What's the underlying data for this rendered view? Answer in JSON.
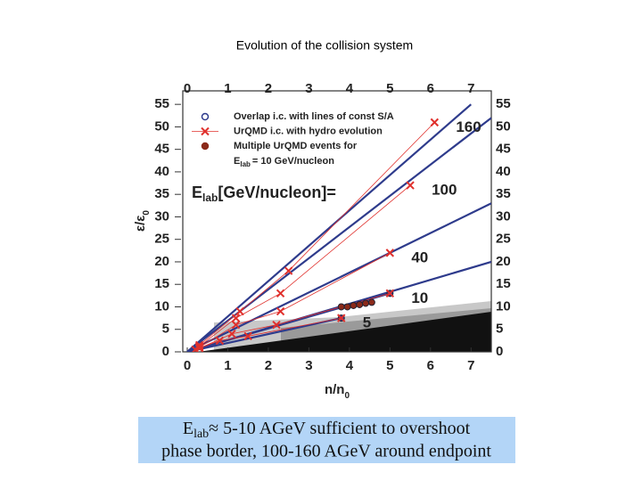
{
  "chart_data": {
    "type": "line",
    "title": "Evolution of the collision system",
    "xlabel": {
      "main": "n/n",
      "sub": "0"
    },
    "ylabel": {
      "main": "ε/ε",
      "sub": "0"
    },
    "annotation": {
      "main": "E",
      "sub": "lab",
      "rest": "[GeV/nucleon]="
    },
    "xlim": [
      0,
      7.5
    ],
    "ylim": [
      0,
      58
    ],
    "xticks": [
      0,
      1,
      2,
      3,
      4,
      5,
      6,
      7
    ],
    "yticks": [
      0,
      5,
      10,
      15,
      20,
      25,
      30,
      35,
      40,
      45,
      50,
      55
    ],
    "series": [
      {
        "name": "Overlap i.c. with lines of const S/A",
        "color": "#2e3b8c",
        "marker": "circle",
        "x": [
          5,
          3.8
        ],
        "y": [
          13,
          7.5
        ],
        "lines": [
          {
            "x": [
              0,
              7
            ],
            "y": [
              0,
              55
            ]
          },
          {
            "x": [
              0,
              7.5
            ],
            "y": [
              0,
              52
            ]
          },
          {
            "x": [
              0,
              7.5
            ],
            "y": [
              0,
              33
            ]
          },
          {
            "x": [
              0,
              7.5
            ],
            "y": [
              0,
              20
            ]
          },
          {
            "x": [
              0,
              5
            ],
            "y": [
              0,
              13
            ]
          },
          {
            "x": [
              0,
              3.8
            ],
            "y": [
              0,
              7.5
            ]
          }
        ]
      },
      {
        "name": "UrQMD i.c. with hydro evolution",
        "color": "#e0302c",
        "marker": "cross",
        "lines": [
          {
            "label": "160",
            "x": [
              0.3,
              1.3,
              2.5,
              6.1
            ],
            "y": [
              1.5,
              9,
              18,
              51
            ]
          },
          {
            "label": "100",
            "x": [
              0.3,
              1.2,
              2.3,
              5.5
            ],
            "y": [
              1.2,
              7.5,
              13,
              37
            ]
          },
          {
            "label": "40",
            "x": [
              0.3,
              1.2,
              2.3,
              5.0
            ],
            "y": [
              1,
              6,
              9,
              22
            ]
          },
          {
            "label": "10",
            "x": [
              0.3,
              1.1,
              2.2,
              5.0
            ],
            "y": [
              0.8,
              4,
              6,
              13
            ]
          },
          {
            "label": "5",
            "x": [
              0.2,
              0.8,
              1.5,
              3.8
            ],
            "y": [
              0.5,
              2.5,
              3.5,
              7.5
            ]
          }
        ]
      },
      {
        "name": "Multiple UrQMD events for",
        "name_line2": {
          "main": "E",
          "sub": "lab",
          "rest": "= 10 GeV/nucleon"
        },
        "color": "#8b2a1a",
        "marker": "circle",
        "x": [
          3.8,
          3.95,
          4.1,
          4.25,
          4.4,
          4.55
        ],
        "y": [
          10,
          10,
          10.3,
          10.5,
          10.8,
          11
        ]
      }
    ]
  },
  "caption": {
    "line1_main": "E",
    "line1_sub": "lab",
    "line1_rest": "≈ 5-10 AGeV sufficient to overshoot",
    "line2": "phase border, 100-160 AGeV around endpoint"
  }
}
